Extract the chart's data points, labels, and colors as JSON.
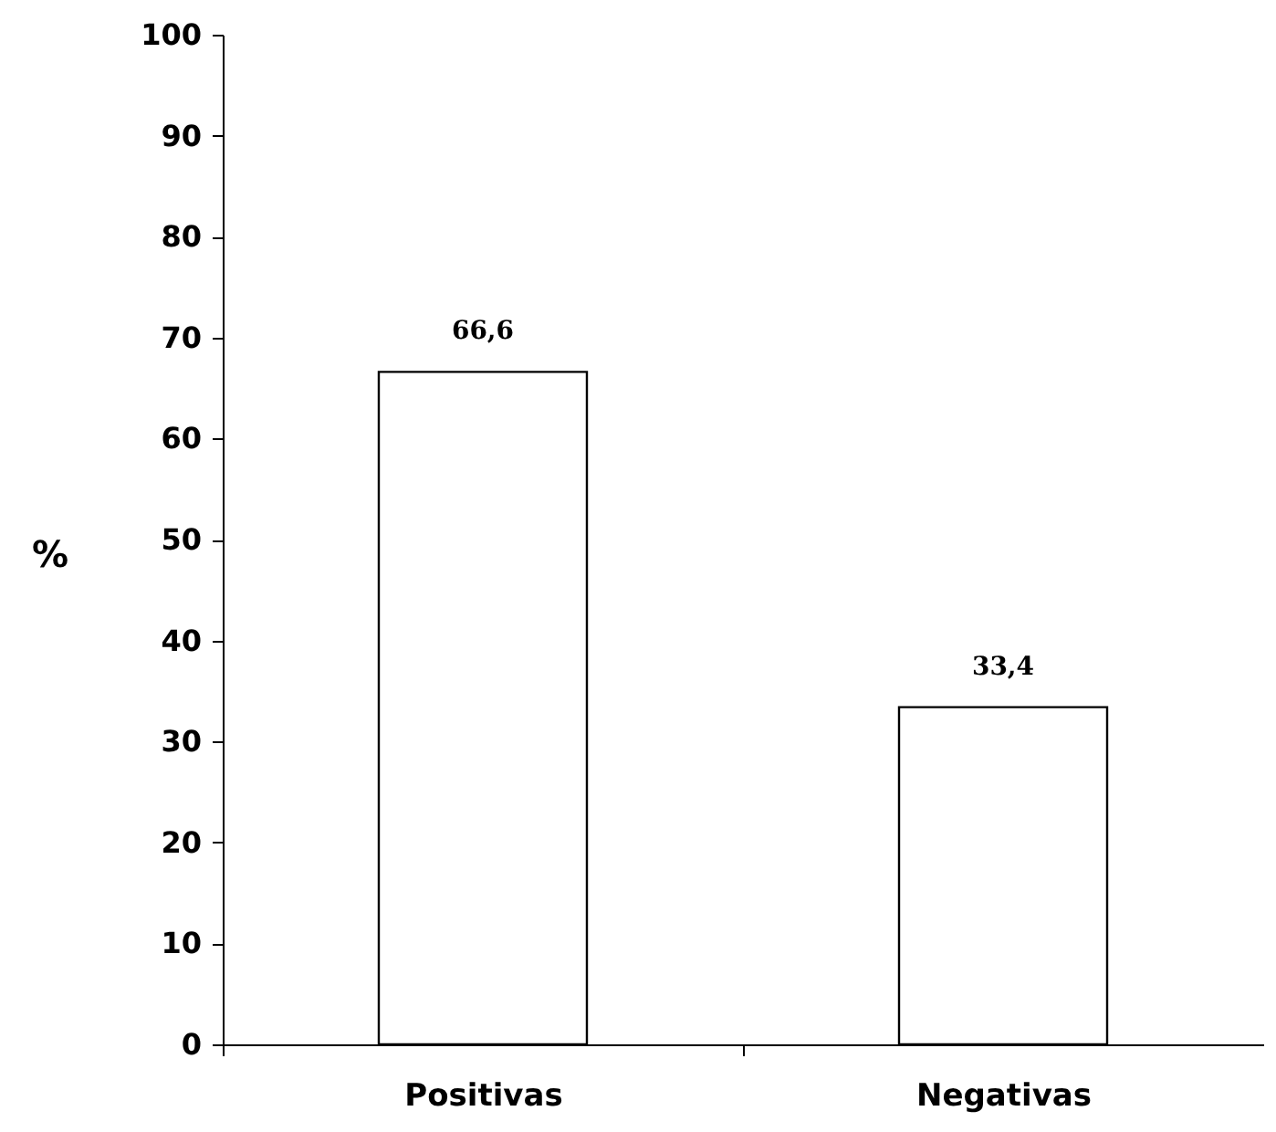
{
  "chart_data": {
    "type": "bar",
    "ylabel": "%",
    "categories": [
      "Positivas",
      "Negativas"
    ],
    "values": [
      66.6,
      33.4
    ],
    "color": "#ffffff",
    "value_labels": [
      "66,6",
      "33,4"
    ],
    "ylim": [
      0,
      100
    ],
    "yticks": [
      0,
      10,
      20,
      30,
      40,
      50,
      60,
      70,
      80,
      90,
      100
    ],
    "grid": false
  }
}
